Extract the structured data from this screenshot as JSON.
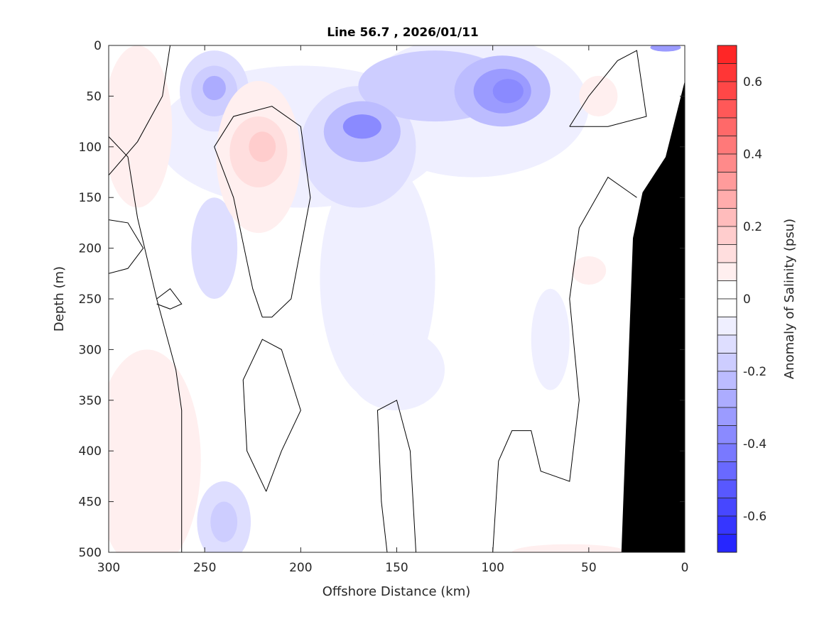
{
  "chart_data": {
    "type": "heatmap",
    "subtype": "filled-contour section",
    "title": "Line 56.7 , 2026/01/11",
    "xlabel": "Offshore Distance (km)",
    "ylabel": "Depth (m)",
    "xlim": [
      300,
      0
    ],
    "ylim": [
      0,
      500
    ],
    "x_reversed": true,
    "y_reversed": true,
    "xticks": [
      300,
      250,
      200,
      150,
      100,
      50,
      0
    ],
    "yticks": [
      0,
      50,
      100,
      150,
      200,
      250,
      300,
      350,
      400,
      450,
      500
    ],
    "colorbar": {
      "label": "Anomaly of Salinity (psu)",
      "range": [
        -0.7,
        0.7
      ],
      "level_step": 0.05,
      "ticks": [
        0.6,
        0.4,
        0.2,
        0,
        -0.2,
        -0.4,
        -0.6
      ],
      "tick_labels": [
        "0.6",
        "0.4",
        "0.2",
        "0",
        "-0.2",
        "-0.4",
        "-0.6"
      ],
      "low_color": "#0000ff",
      "mid_color": "#ffffff",
      "high_color": "#ff0000"
    },
    "anomaly_patches": [
      {
        "km": 200,
        "depth": 90,
        "rkm": 75,
        "rdepth": 70,
        "value": -0.05
      },
      {
        "km": 110,
        "depth": 60,
        "rkm": 60,
        "rdepth": 70,
        "value": -0.05
      },
      {
        "km": 160,
        "depth": 230,
        "rkm": 30,
        "rdepth": 120,
        "value": -0.05
      },
      {
        "km": 150,
        "depth": 320,
        "rkm": 25,
        "rdepth": 40,
        "value": -0.05
      },
      {
        "km": 70,
        "depth": 290,
        "rkm": 10,
        "rdepth": 50,
        "value": -0.05
      },
      {
        "km": 245,
        "depth": 200,
        "rkm": 12,
        "rdepth": 50,
        "value": -0.1
      },
      {
        "km": 240,
        "depth": 470,
        "rkm": 14,
        "rdepth": 40,
        "value": -0.1
      },
      {
        "km": 240,
        "depth": 470,
        "rkm": 7,
        "rdepth": 20,
        "value": -0.15
      },
      {
        "km": 245,
        "depth": 45,
        "rkm": 18,
        "rdepth": 40,
        "value": -0.1
      },
      {
        "km": 245,
        "depth": 45,
        "rkm": 12,
        "rdepth": 25,
        "value": -0.15
      },
      {
        "km": 245,
        "depth": 42,
        "rkm": 6,
        "rdepth": 12,
        "value": -0.25
      },
      {
        "km": 170,
        "depth": 100,
        "rkm": 30,
        "rdepth": 60,
        "value": -0.1
      },
      {
        "km": 130,
        "depth": 40,
        "rkm": 40,
        "rdepth": 35,
        "value": -0.15
      },
      {
        "km": 168,
        "depth": 85,
        "rkm": 20,
        "rdepth": 30,
        "value": -0.2
      },
      {
        "km": 168,
        "depth": 80,
        "rkm": 10,
        "rdepth": 12,
        "value": -0.35
      },
      {
        "km": 95,
        "depth": 45,
        "rkm": 25,
        "rdepth": 35,
        "value": -0.2
      },
      {
        "km": 95,
        "depth": 45,
        "rkm": 15,
        "rdepth": 22,
        "value": -0.3
      },
      {
        "km": 92,
        "depth": 45,
        "rkm": 8,
        "rdepth": 12,
        "value": -0.35
      },
      {
        "km": 10,
        "depth": 2,
        "rkm": 8,
        "rdepth": 4,
        "value": -0.3
      },
      {
        "km": 285,
        "depth": 80,
        "rkm": 18,
        "rdepth": 80,
        "value": 0.05
      },
      {
        "km": 280,
        "depth": 410,
        "rkm": 28,
        "rdepth": 110,
        "value": 0.05
      },
      {
        "km": 222,
        "depth": 110,
        "rkm": 22,
        "rdepth": 75,
        "value": 0.05
      },
      {
        "km": 222,
        "depth": 105,
        "rkm": 15,
        "rdepth": 35,
        "value": 0.1
      },
      {
        "km": 220,
        "depth": 100,
        "rkm": 7,
        "rdepth": 15,
        "value": 0.15
      },
      {
        "km": 50,
        "depth": 222,
        "rkm": 9,
        "rdepth": 14,
        "value": 0.05
      },
      {
        "km": 45,
        "depth": 50,
        "rkm": 10,
        "rdepth": 20,
        "value": 0.05
      },
      {
        "km": 60,
        "depth": 500,
        "rkm": 30,
        "rdepth": 8,
        "value": 0.05
      }
    ],
    "zero_contours": [
      [
        [
          300,
          128
        ],
        [
          285,
          95
        ],
        [
          272,
          50
        ],
        [
          268,
          0
        ]
      ],
      [
        [
          300,
          172
        ],
        [
          290,
          175
        ],
        [
          282,
          200
        ],
        [
          290,
          220
        ],
        [
          300,
          225
        ]
      ],
      [
        [
          275,
          250
        ],
        [
          268,
          240
        ],
        [
          262,
          255
        ],
        [
          268,
          260
        ],
        [
          275,
          255
        ]
      ],
      [
        [
          262,
          500
        ],
        [
          262,
          360
        ],
        [
          265,
          320
        ],
        [
          275,
          250
        ],
        [
          285,
          170
        ],
        [
          290,
          110
        ],
        [
          300,
          90
        ]
      ],
      [
        [
          220,
          268
        ],
        [
          225,
          240
        ],
        [
          235,
          150
        ],
        [
          245,
          100
        ],
        [
          235,
          70
        ],
        [
          215,
          60
        ],
        [
          200,
          80
        ],
        [
          195,
          150
        ],
        [
          205,
          250
        ],
        [
          215,
          268
        ],
        [
          220,
          268
        ]
      ],
      [
        [
          218,
          440
        ],
        [
          210,
          400
        ],
        [
          200,
          360
        ],
        [
          210,
          300
        ],
        [
          220,
          290
        ],
        [
          230,
          330
        ],
        [
          228,
          400
        ],
        [
          218,
          440
        ]
      ],
      [
        [
          140,
          500
        ],
        [
          143,
          400
        ],
        [
          150,
          350
        ],
        [
          160,
          360
        ],
        [
          158,
          450
        ],
        [
          155,
          500
        ]
      ],
      [
        [
          100,
          500
        ],
        [
          97,
          410
        ],
        [
          90,
          380
        ],
        [
          80,
          380
        ],
        [
          75,
          420
        ],
        [
          60,
          430
        ],
        [
          55,
          350
        ],
        [
          60,
          250
        ],
        [
          55,
          180
        ],
        [
          40,
          130
        ],
        [
          25,
          150
        ]
      ],
      [
        [
          60,
          80
        ],
        [
          50,
          50
        ],
        [
          35,
          15
        ],
        [
          25,
          5
        ],
        [
          20,
          70
        ],
        [
          40,
          80
        ],
        [
          60,
          80
        ]
      ],
      [
        [
          8,
          0
        ],
        [
          0,
          0
        ]
      ]
    ],
    "bathymetry_polygon": [
      [
        33,
        500
      ],
      [
        27,
        190
      ],
      [
        22,
        145
      ],
      [
        10,
        110
      ],
      [
        0,
        35
      ],
      [
        0,
        500
      ]
    ],
    "bathymetry_color": "#000000"
  }
}
